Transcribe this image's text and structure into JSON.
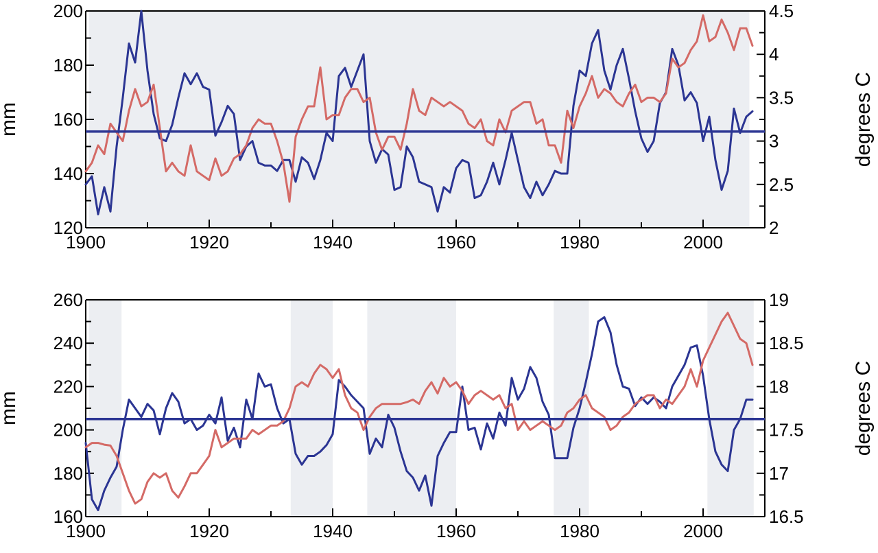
{
  "colors": {
    "precip": "#2b3593",
    "temp": "#d46a66",
    "mean_line": "#2b3593",
    "shade": "#eceef2",
    "axis": "#000000"
  },
  "chart_data": [
    {
      "type": "line",
      "title": "",
      "xlabel": "",
      "ylabel": "mm",
      "ylabel_right": "degrees C",
      "xlim": [
        1900,
        2010
      ],
      "ylim": [
        120,
        200
      ],
      "ylim_right": [
        2,
        4.5
      ],
      "x_ticks": [
        "1900",
        "1920",
        "1940",
        "1960",
        "1980",
        "2000"
      ],
      "y_ticks": [
        "120",
        "140",
        "160",
        "180",
        "200"
      ],
      "y_ticks_right": [
        "2",
        "2.5",
        "3",
        "3.5",
        "4",
        "4.5"
      ],
      "mean_line": 155.5,
      "shaded_periods": [
        [
          1900.5,
          1905.5
        ],
        [
          1924.3,
          1940.2
        ],
        [
          1946,
          1979
        ],
        [
          1901.8,
          2007.5
        ]
      ],
      "series": [
        {
          "axis": "left",
          "color_key": "precip",
          "x": [
            1900,
            1901,
            1902,
            1903,
            1904,
            1905,
            1906,
            1907,
            1908,
            1909,
            1910,
            1911,
            1912,
            1913,
            1914,
            1915,
            1916,
            1917,
            1918,
            1919,
            1920,
            1921,
            1922,
            1923,
            1924,
            1925,
            1926,
            1927,
            1928,
            1929,
            1930,
            1931,
            1932,
            1933,
            1934,
            1935,
            1936,
            1937,
            1938,
            1939,
            1940,
            1941,
            1942,
            1943,
            1944,
            1945,
            1946,
            1947,
            1948,
            1949,
            1950,
            1951,
            1952,
            1953,
            1954,
            1955,
            1956,
            1957,
            1958,
            1959,
            1960,
            1961,
            1962,
            1963,
            1964,
            1965,
            1966,
            1967,
            1968,
            1969,
            1970,
            1971,
            1972,
            1973,
            1974,
            1975,
            1976,
            1977,
            1978,
            1979,
            1980,
            1981,
            1982,
            1983,
            1984,
            1985,
            1986,
            1987,
            1988,
            1989,
            1990,
            1991,
            1992,
            1993,
            1994,
            1995,
            1996,
            1997,
            1998,
            1999,
            2000,
            2001,
            2002,
            2003,
            2004,
            2005,
            2006,
            2007,
            2008
          ],
          "values": [
            136,
            139,
            125,
            135,
            126,
            150,
            168,
            188,
            181,
            200,
            178,
            162,
            153,
            152,
            158,
            168,
            177,
            173,
            177,
            172,
            171,
            154,
            159,
            165,
            162,
            145,
            150,
            152,
            144,
            143,
            143,
            141,
            145,
            145,
            137,
            146,
            144,
            138,
            145,
            155,
            152,
            176,
            179,
            172,
            178,
            184,
            152,
            144,
            149,
            147,
            134,
            135,
            150,
            146,
            137,
            136,
            135,
            126,
            135,
            133,
            142,
            145,
            144,
            131,
            132,
            137,
            144,
            136,
            145,
            155,
            145,
            135,
            131,
            137,
            132,
            136,
            141,
            140,
            140,
            165,
            178,
            176,
            188,
            193,
            178,
            171,
            180,
            186,
            175,
            163,
            153,
            148,
            152,
            166,
            170,
            186,
            180,
            167,
            170,
            166,
            152,
            161,
            145,
            134,
            141,
            164,
            155,
            161,
            163
          ]
        },
        {
          "axis": "right",
          "color_key": "temp",
          "x": [
            1900,
            1901,
            1902,
            1903,
            1904,
            1905,
            1906,
            1907,
            1908,
            1909,
            1910,
            1911,
            1912,
            1913,
            1914,
            1915,
            1916,
            1917,
            1918,
            1919,
            1920,
            1921,
            1922,
            1923,
            1924,
            1925,
            1926,
            1927,
            1928,
            1929,
            1930,
            1931,
            1932,
            1933,
            1934,
            1935,
            1936,
            1937,
            1938,
            1939,
            1940,
            1941,
            1942,
            1943,
            1944,
            1945,
            1946,
            1947,
            1948,
            1949,
            1950,
            1951,
            1952,
            1953,
            1954,
            1955,
            1956,
            1957,
            1958,
            1959,
            1960,
            1961,
            1962,
            1963,
            1964,
            1965,
            1966,
            1967,
            1968,
            1969,
            1970,
            1971,
            1972,
            1973,
            1974,
            1975,
            1976,
            1977,
            1978,
            1979,
            1980,
            1981,
            1982,
            1983,
            1984,
            1985,
            1986,
            1987,
            1988,
            1989,
            1990,
            1991,
            1992,
            1993,
            1994,
            1995,
            1996,
            1997,
            1998,
            1999,
            2000,
            2001,
            2002,
            2003,
            2004,
            2005,
            2006,
            2007,
            2008
          ],
          "values": [
            2.65,
            2.75,
            2.95,
            2.85,
            3.2,
            3.1,
            3.0,
            3.35,
            3.6,
            3.4,
            3.45,
            3.65,
            3.15,
            2.65,
            2.75,
            2.65,
            2.6,
            2.95,
            2.65,
            2.6,
            2.55,
            2.8,
            2.6,
            2.65,
            2.8,
            2.85,
            2.95,
            3.15,
            3.25,
            3.2,
            3.2,
            3.0,
            2.75,
            2.3,
            3.05,
            3.25,
            3.4,
            3.4,
            3.85,
            3.25,
            3.3,
            3.3,
            3.5,
            3.6,
            3.6,
            3.45,
            3.5,
            3.1,
            2.9,
            3.05,
            3.05,
            2.9,
            3.2,
            3.6,
            3.35,
            3.3,
            3.5,
            3.45,
            3.4,
            3.45,
            3.4,
            3.35,
            3.2,
            3.15,
            3.25,
            3.0,
            2.95,
            3.25,
            3.1,
            3.35,
            3.4,
            3.45,
            3.45,
            3.2,
            3.25,
            2.95,
            2.95,
            2.75,
            3.35,
            3.15,
            3.4,
            3.55,
            3.75,
            3.5,
            3.6,
            3.55,
            3.45,
            3.4,
            3.55,
            3.65,
            3.45,
            3.5,
            3.5,
            3.45,
            3.55,
            3.95,
            3.85,
            3.9,
            4.05,
            4.15,
            4.45,
            4.15,
            4.2,
            4.4,
            4.25,
            4.05,
            4.3,
            4.3,
            4.1
          ]
        }
      ]
    },
    {
      "type": "line",
      "title": "",
      "xlabel": "",
      "ylabel": "mm",
      "ylabel_right": "degrees C",
      "xlim": [
        1900,
        2010
      ],
      "ylim": [
        160,
        260
      ],
      "ylim_right": [
        16.5,
        19
      ],
      "x_ticks": [
        "1900",
        "1920",
        "1940",
        "1960",
        "1980",
        "2000"
      ],
      "y_ticks": [
        "160",
        "180",
        "200",
        "220",
        "240",
        "260"
      ],
      "y_ticks_right": [
        "16.5",
        "17",
        "17.5",
        "18",
        "18.5",
        "19"
      ],
      "mean_line": 205,
      "shaded_periods": [
        [
          1900.5,
          1905.8
        ],
        [
          1933.2,
          1940
        ],
        [
          1945.6,
          1960
        ],
        [
          1975.8,
          1981.5
        ],
        [
          2000.7,
          2008.2
        ]
      ],
      "series": [
        {
          "axis": "left",
          "color_key": "precip",
          "x": [
            1900,
            1901,
            1902,
            1903,
            1904,
            1905,
            1906,
            1907,
            1908,
            1909,
            1910,
            1911,
            1912,
            1913,
            1914,
            1915,
            1916,
            1917,
            1918,
            1919,
            1920,
            1921,
            1922,
            1923,
            1924,
            1925,
            1926,
            1927,
            1928,
            1929,
            1930,
            1931,
            1932,
            1933,
            1934,
            1935,
            1936,
            1937,
            1938,
            1939,
            1940,
            1941,
            1942,
            1943,
            1944,
            1945,
            1946,
            1947,
            1948,
            1949,
            1950,
            1951,
            1952,
            1953,
            1954,
            1955,
            1956,
            1957,
            1958,
            1959,
            1960,
            1961,
            1962,
            1963,
            1964,
            1965,
            1966,
            1967,
            1968,
            1969,
            1970,
            1971,
            1972,
            1973,
            1974,
            1975,
            1976,
            1977,
            1978,
            1979,
            1980,
            1981,
            1982,
            1983,
            1984,
            1985,
            1986,
            1987,
            1988,
            1989,
            1990,
            1991,
            1992,
            1993,
            1994,
            1995,
            1996,
            1997,
            1998,
            1999,
            2000,
            2001,
            2002,
            2003,
            2004,
            2005,
            2006,
            2007,
            2008
          ],
          "values": [
            194,
            168,
            163,
            172,
            178,
            183,
            200,
            214,
            210,
            206,
            212,
            209,
            198,
            210,
            217,
            213,
            203,
            205,
            200,
            202,
            207,
            203,
            215,
            195,
            201,
            192,
            214,
            205,
            226,
            220,
            221,
            210,
            203,
            205,
            189,
            184,
            188,
            188,
            190,
            193,
            198,
            223,
            220,
            216,
            213,
            210,
            189,
            196,
            192,
            207,
            201,
            190,
            181,
            178,
            172,
            179,
            165,
            188,
            194,
            199,
            199,
            220,
            200,
            201,
            191,
            203,
            196,
            208,
            202,
            224,
            214,
            219,
            229,
            224,
            213,
            207,
            187,
            187,
            187,
            201,
            210,
            222,
            235,
            250,
            252,
            245,
            230,
            220,
            219,
            211,
            215,
            212,
            215,
            213,
            210,
            220,
            225,
            230,
            238,
            239,
            225,
            205,
            190,
            184,
            181,
            200,
            205,
            214,
            214
          ]
        },
        {
          "axis": "right",
          "color_key": "temp",
          "x": [
            1900,
            1901,
            1902,
            1903,
            1904,
            1905,
            1906,
            1907,
            1908,
            1909,
            1910,
            1911,
            1912,
            1913,
            1914,
            1915,
            1916,
            1917,
            1918,
            1919,
            1920,
            1921,
            1922,
            1923,
            1924,
            1925,
            1926,
            1927,
            1928,
            1929,
            1930,
            1931,
            1932,
            1933,
            1934,
            1935,
            1936,
            1937,
            1938,
            1939,
            1940,
            1941,
            1942,
            1943,
            1944,
            1945,
            1946,
            1947,
            1948,
            1949,
            1950,
            1951,
            1952,
            1953,
            1954,
            1955,
            1956,
            1957,
            1958,
            1959,
            1960,
            1961,
            1962,
            1963,
            1964,
            1965,
            1966,
            1967,
            1968,
            1969,
            1970,
            1971,
            1972,
            1973,
            1974,
            1975,
            1976,
            1977,
            1978,
            1979,
            1980,
            1981,
            1982,
            1983,
            1984,
            1985,
            1986,
            1987,
            1988,
            1989,
            1990,
            1991,
            1992,
            1993,
            1994,
            1995,
            1996,
            1997,
            1998,
            1999,
            2000,
            2001,
            2002,
            2003,
            2004,
            2005,
            2006,
            2007,
            2008
          ],
          "values": [
            17.3,
            17.35,
            17.35,
            17.33,
            17.32,
            17.2,
            17.0,
            16.8,
            16.65,
            16.7,
            16.9,
            17.0,
            16.95,
            17.0,
            16.8,
            16.72,
            16.85,
            17.0,
            17.0,
            17.1,
            17.2,
            17.5,
            17.3,
            17.35,
            17.4,
            17.4,
            17.4,
            17.5,
            17.45,
            17.5,
            17.55,
            17.55,
            17.6,
            17.75,
            18.0,
            18.05,
            18.0,
            18.15,
            18.25,
            18.2,
            18.1,
            18.2,
            17.9,
            17.75,
            17.7,
            17.5,
            17.65,
            17.75,
            17.8,
            17.8,
            17.8,
            17.8,
            17.82,
            17.85,
            17.8,
            17.95,
            18.05,
            17.92,
            18.1,
            18.0,
            18.05,
            17.95,
            17.8,
            17.9,
            17.95,
            17.9,
            17.85,
            17.9,
            17.75,
            17.8,
            17.5,
            17.6,
            17.5,
            17.55,
            17.6,
            17.55,
            17.5,
            17.55,
            17.7,
            17.75,
            17.85,
            17.9,
            17.75,
            17.7,
            17.65,
            17.5,
            17.55,
            17.65,
            17.7,
            17.8,
            17.85,
            17.9,
            17.9,
            17.75,
            17.85,
            17.8,
            17.9,
            18.0,
            18.2,
            18.0,
            18.3,
            18.45,
            18.6,
            18.75,
            18.85,
            18.7,
            18.55,
            18.5,
            18.25
          ]
        }
      ]
    }
  ]
}
